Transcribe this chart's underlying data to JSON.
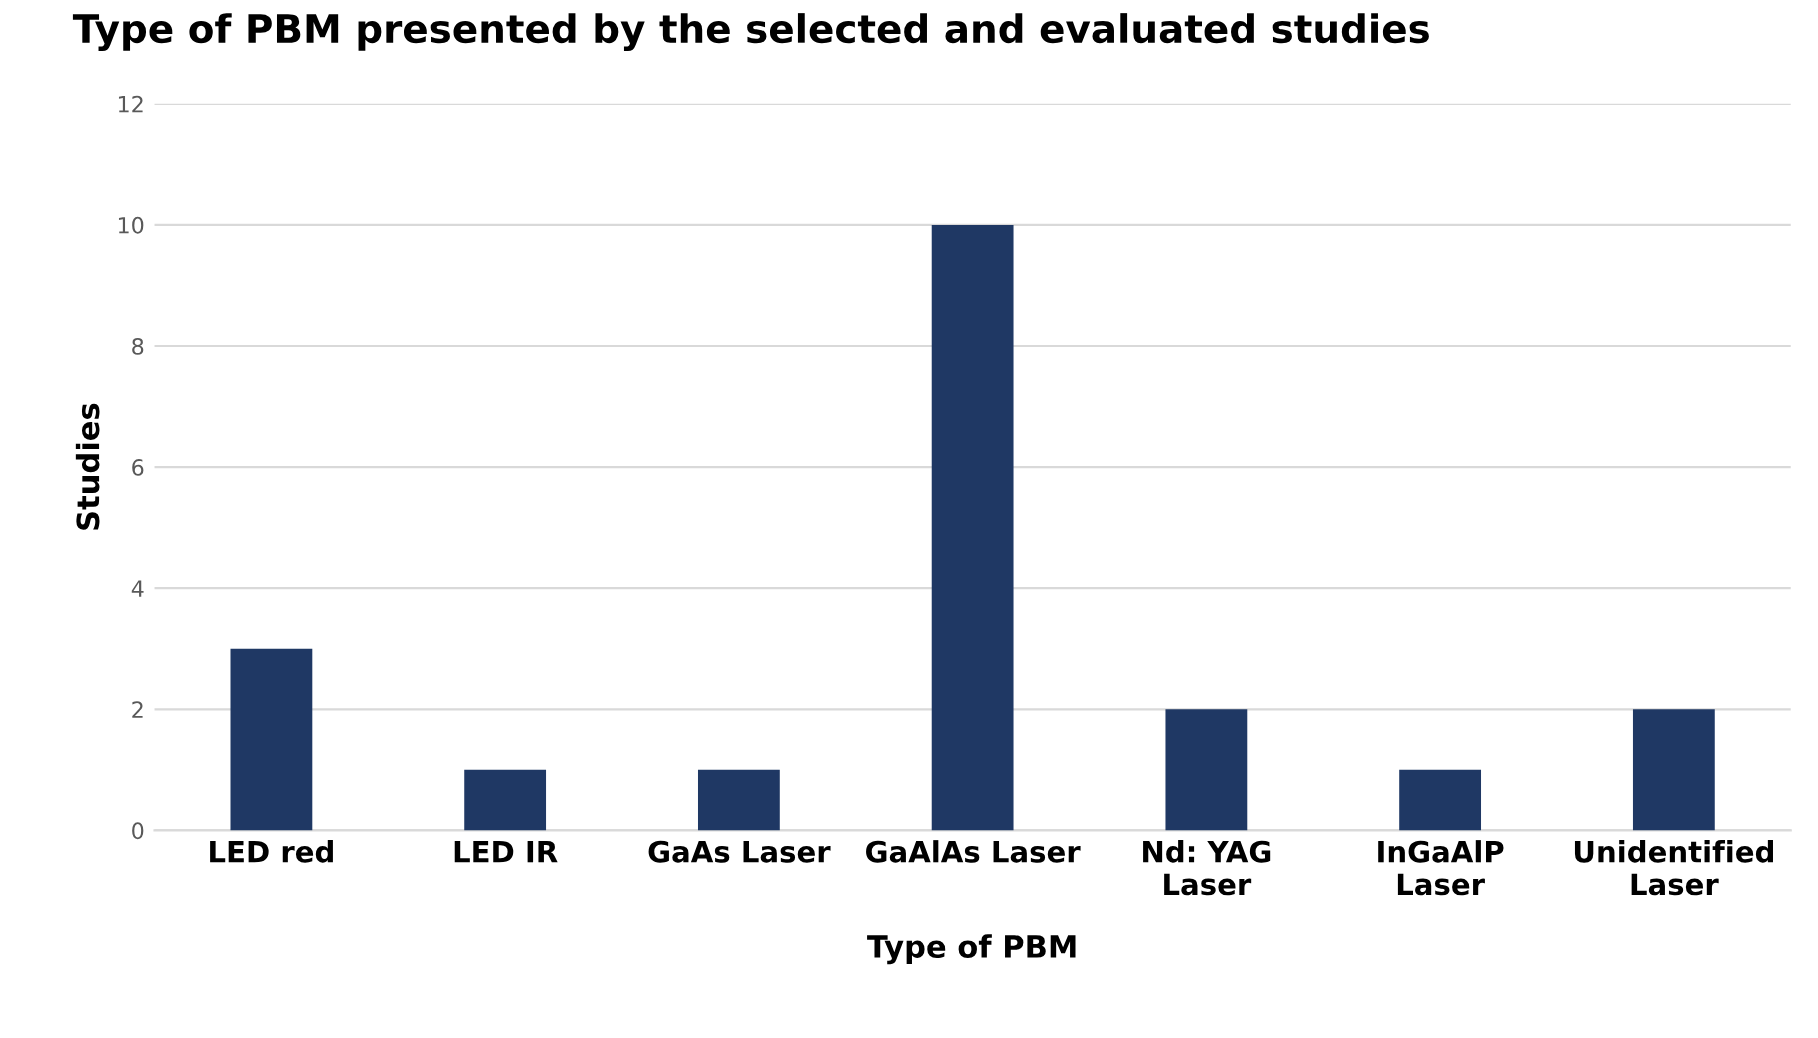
{
  "chart_data": {
    "type": "bar",
    "title": "Type of PBM presented by the selected and evaluated studies",
    "xlabel": "Type of PBM",
    "ylabel": "Studies",
    "categories": [
      "LED red",
      "LED IR",
      "GaAs Laser",
      "GaAlAs Laser",
      "Nd: YAG\nLaser",
      "InGaAlP\nLaser",
      "Unidentified\nLaser"
    ],
    "values": [
      3,
      1,
      1,
      10,
      2,
      1,
      2
    ],
    "color": "#1f3864",
    "ylim": [
      0,
      12
    ],
    "yticks": [
      0,
      2,
      4,
      6,
      8,
      10,
      12
    ],
    "grid": "y"
  }
}
